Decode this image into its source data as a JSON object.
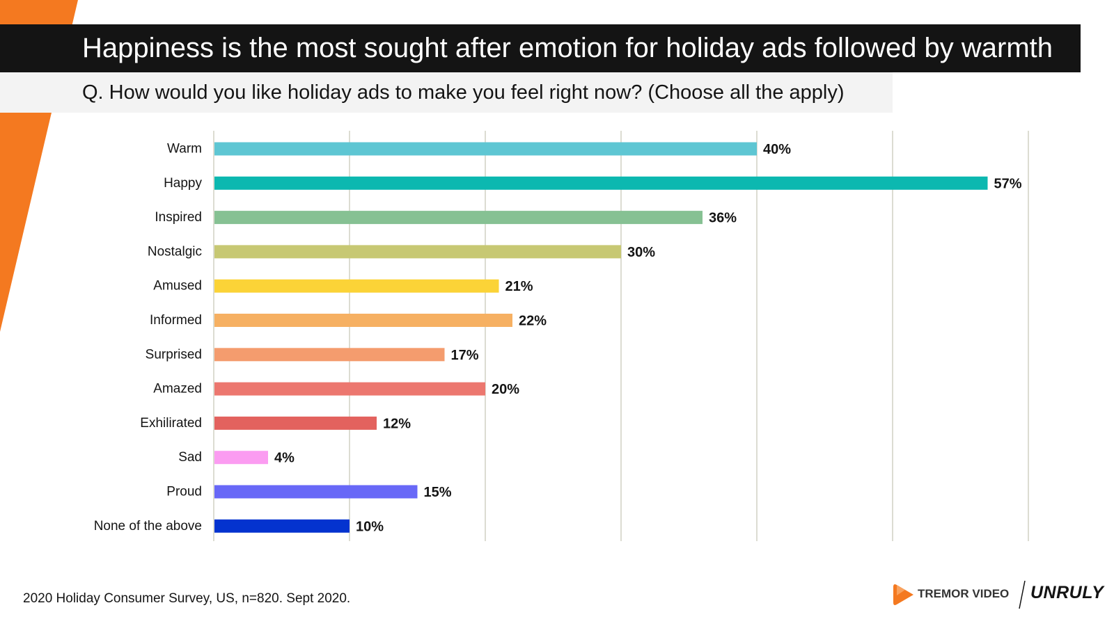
{
  "header": {
    "title": "Happiness is the most sought after emotion for holiday ads followed by warmth",
    "subtitle": "Q. How would you like holiday ads to make you feel right now? (Choose all the apply)"
  },
  "footer": {
    "source": "2020 Holiday Consumer Survey, US, n=820. Sept 2020."
  },
  "logos": {
    "tremor": "TREMOR VIDEO",
    "unruly": "UNRULY"
  },
  "colors": {
    "accent": "#f47920",
    "title_bg": "#141414",
    "subtitle_bg": "#f3f3f3"
  },
  "chart_data": {
    "type": "bar",
    "orientation": "horizontal",
    "title": "",
    "xlabel": "",
    "ylabel": "",
    "xlim": [
      0,
      60
    ],
    "grid": true,
    "value_suffix": "%",
    "categories": [
      "Warm",
      "Happy",
      "Inspired",
      "Nostalgic",
      "Amused",
      "Informed",
      "Surprised",
      "Amazed",
      "Exhilirated",
      "Sad",
      "Proud",
      "None of the above"
    ],
    "values": [
      40,
      57,
      36,
      30,
      21,
      22,
      17,
      20,
      12,
      4,
      15,
      10
    ],
    "labels": [
      "40%",
      "57%",
      "36%",
      "30%",
      "21%",
      "22%",
      "17%",
      "20%",
      "12%",
      "4%",
      "15%",
      "10%"
    ],
    "bar_colors": [
      "#5ec6d3",
      "#0cb8b0",
      "#86c193",
      "#c7c873",
      "#fbd337",
      "#f6b062",
      "#f49c6e",
      "#ec776f",
      "#e3625e",
      "#fb9cf1",
      "#6868f7",
      "#0433cf"
    ]
  }
}
